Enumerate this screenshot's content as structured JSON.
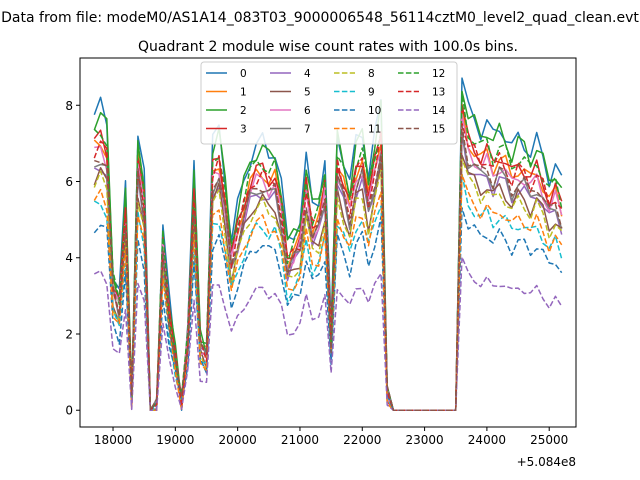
{
  "figure": {
    "suptitle": "Data from file: modeM0/AS1A14_083T03_9000006548_56114cztM0_level2_quad_clean.evt",
    "title": "Quadrant 2 module wise count rates with 100.0s bins.",
    "offset_label": "+5.084e8"
  },
  "chart_data": {
    "type": "line",
    "title": "Quadrant 2 module wise count rates with 100.0s bins.",
    "x_offset": 508400000,
    "xlim": [
      17470,
      25430
    ],
    "ylim": [
      -0.44,
      9.24
    ],
    "x_ticks": [
      18000,
      19000,
      20000,
      21000,
      22000,
      23000,
      24000,
      25000
    ],
    "y_ticks": [
      0,
      2,
      4,
      6,
      8
    ],
    "legend_position": "top-center",
    "legend_columns": 4,
    "grid": false,
    "x": [
      17700,
      17800,
      17900,
      18000,
      18100,
      18200,
      18300,
      18400,
      18500,
      18600,
      18700,
      18800,
      18900,
      19000,
      19100,
      19200,
      19300,
      19400,
      19500,
      19600,
      19700,
      19800,
      19900,
      20000,
      20100,
      20200,
      20300,
      20400,
      20500,
      20600,
      20700,
      20800,
      20900,
      21000,
      21100,
      21200,
      21300,
      21400,
      21500,
      21600,
      21700,
      21800,
      21900,
      22000,
      22100,
      22200,
      22300,
      22400,
      22500,
      22600,
      22700,
      22800,
      22900,
      23000,
      23100,
      23200,
      23300,
      23400,
      23500,
      23600,
      23700,
      23800,
      23900,
      24000,
      24100,
      24200,
      24300,
      24400,
      24500,
      24600,
      24700,
      24800,
      24900,
      25000,
      25100,
      25200
    ],
    "base": [
      7.6,
      7.8,
      7.4,
      3.6,
      3.0,
      5.7,
      0.3,
      7.2,
      6.0,
      0.0,
      0.1,
      4.8,
      2.8,
      1.5,
      0.2,
      2.1,
      6.2,
      1.9,
      1.6,
      6.9,
      7.2,
      6.0,
      4.4,
      5.2,
      5.9,
      6.5,
      6.8,
      6.9,
      6.6,
      6.7,
      5.8,
      4.3,
      4.6,
      4.9,
      6.4,
      5.3,
      5.5,
      6.4,
      2.0,
      7.1,
      6.5,
      5.8,
      6.9,
      7.2,
      6.1,
      7.0,
      7.9,
      0.5,
      0.0,
      0.0,
      0.0,
      0.0,
      0.0,
      0.0,
      0.0,
      0.0,
      0.0,
      0.0,
      0.0,
      8.6,
      7.7,
      7.5,
      7.2,
      7.4,
      7.0,
      7.3,
      7.1,
      6.7,
      7.0,
      6.9,
      6.6,
      6.9,
      6.5,
      6.0,
      6.3,
      5.8
    ],
    "series": [
      {
        "name": "0",
        "color": "#1f77b4",
        "style": "solid",
        "scale": 1.02
      },
      {
        "name": "1",
        "color": "#ff7f0e",
        "style": "solid",
        "scale": 0.91
      },
      {
        "name": "2",
        "color": "#2ca02c",
        "style": "solid",
        "scale": 1.0
      },
      {
        "name": "3",
        "color": "#d62728",
        "style": "solid",
        "scale": 0.92
      },
      {
        "name": "4",
        "color": "#9467bd",
        "style": "solid",
        "scale": 0.83
      },
      {
        "name": "5",
        "color": "#8c564b",
        "style": "solid",
        "scale": 0.8
      },
      {
        "name": "6",
        "color": "#e377c2",
        "style": "solid",
        "scale": 0.88
      },
      {
        "name": "7",
        "color": "#7f7f7f",
        "style": "solid",
        "scale": 0.85
      },
      {
        "name": "8",
        "color": "#bcbd22",
        "style": "dashed",
        "scale": 0.78
      },
      {
        "name": "9",
        "color": "#17becf",
        "style": "dashed",
        "scale": 0.7
      },
      {
        "name": "10",
        "color": "#1f77b4",
        "style": "dashed",
        "scale": 0.63
      },
      {
        "name": "11",
        "color": "#ff7f0e",
        "style": "dashed",
        "scale": 0.72
      },
      {
        "name": "12",
        "color": "#2ca02c",
        "style": "dashed",
        "scale": 0.95
      },
      {
        "name": "13",
        "color": "#d62728",
        "style": "dashed",
        "scale": 0.9
      },
      {
        "name": "14",
        "color": "#9467bd",
        "style": "dashed",
        "scale": 0.46
      },
      {
        "name": "15",
        "color": "#8c564b",
        "style": "dashed",
        "scale": 0.86
      }
    ]
  }
}
